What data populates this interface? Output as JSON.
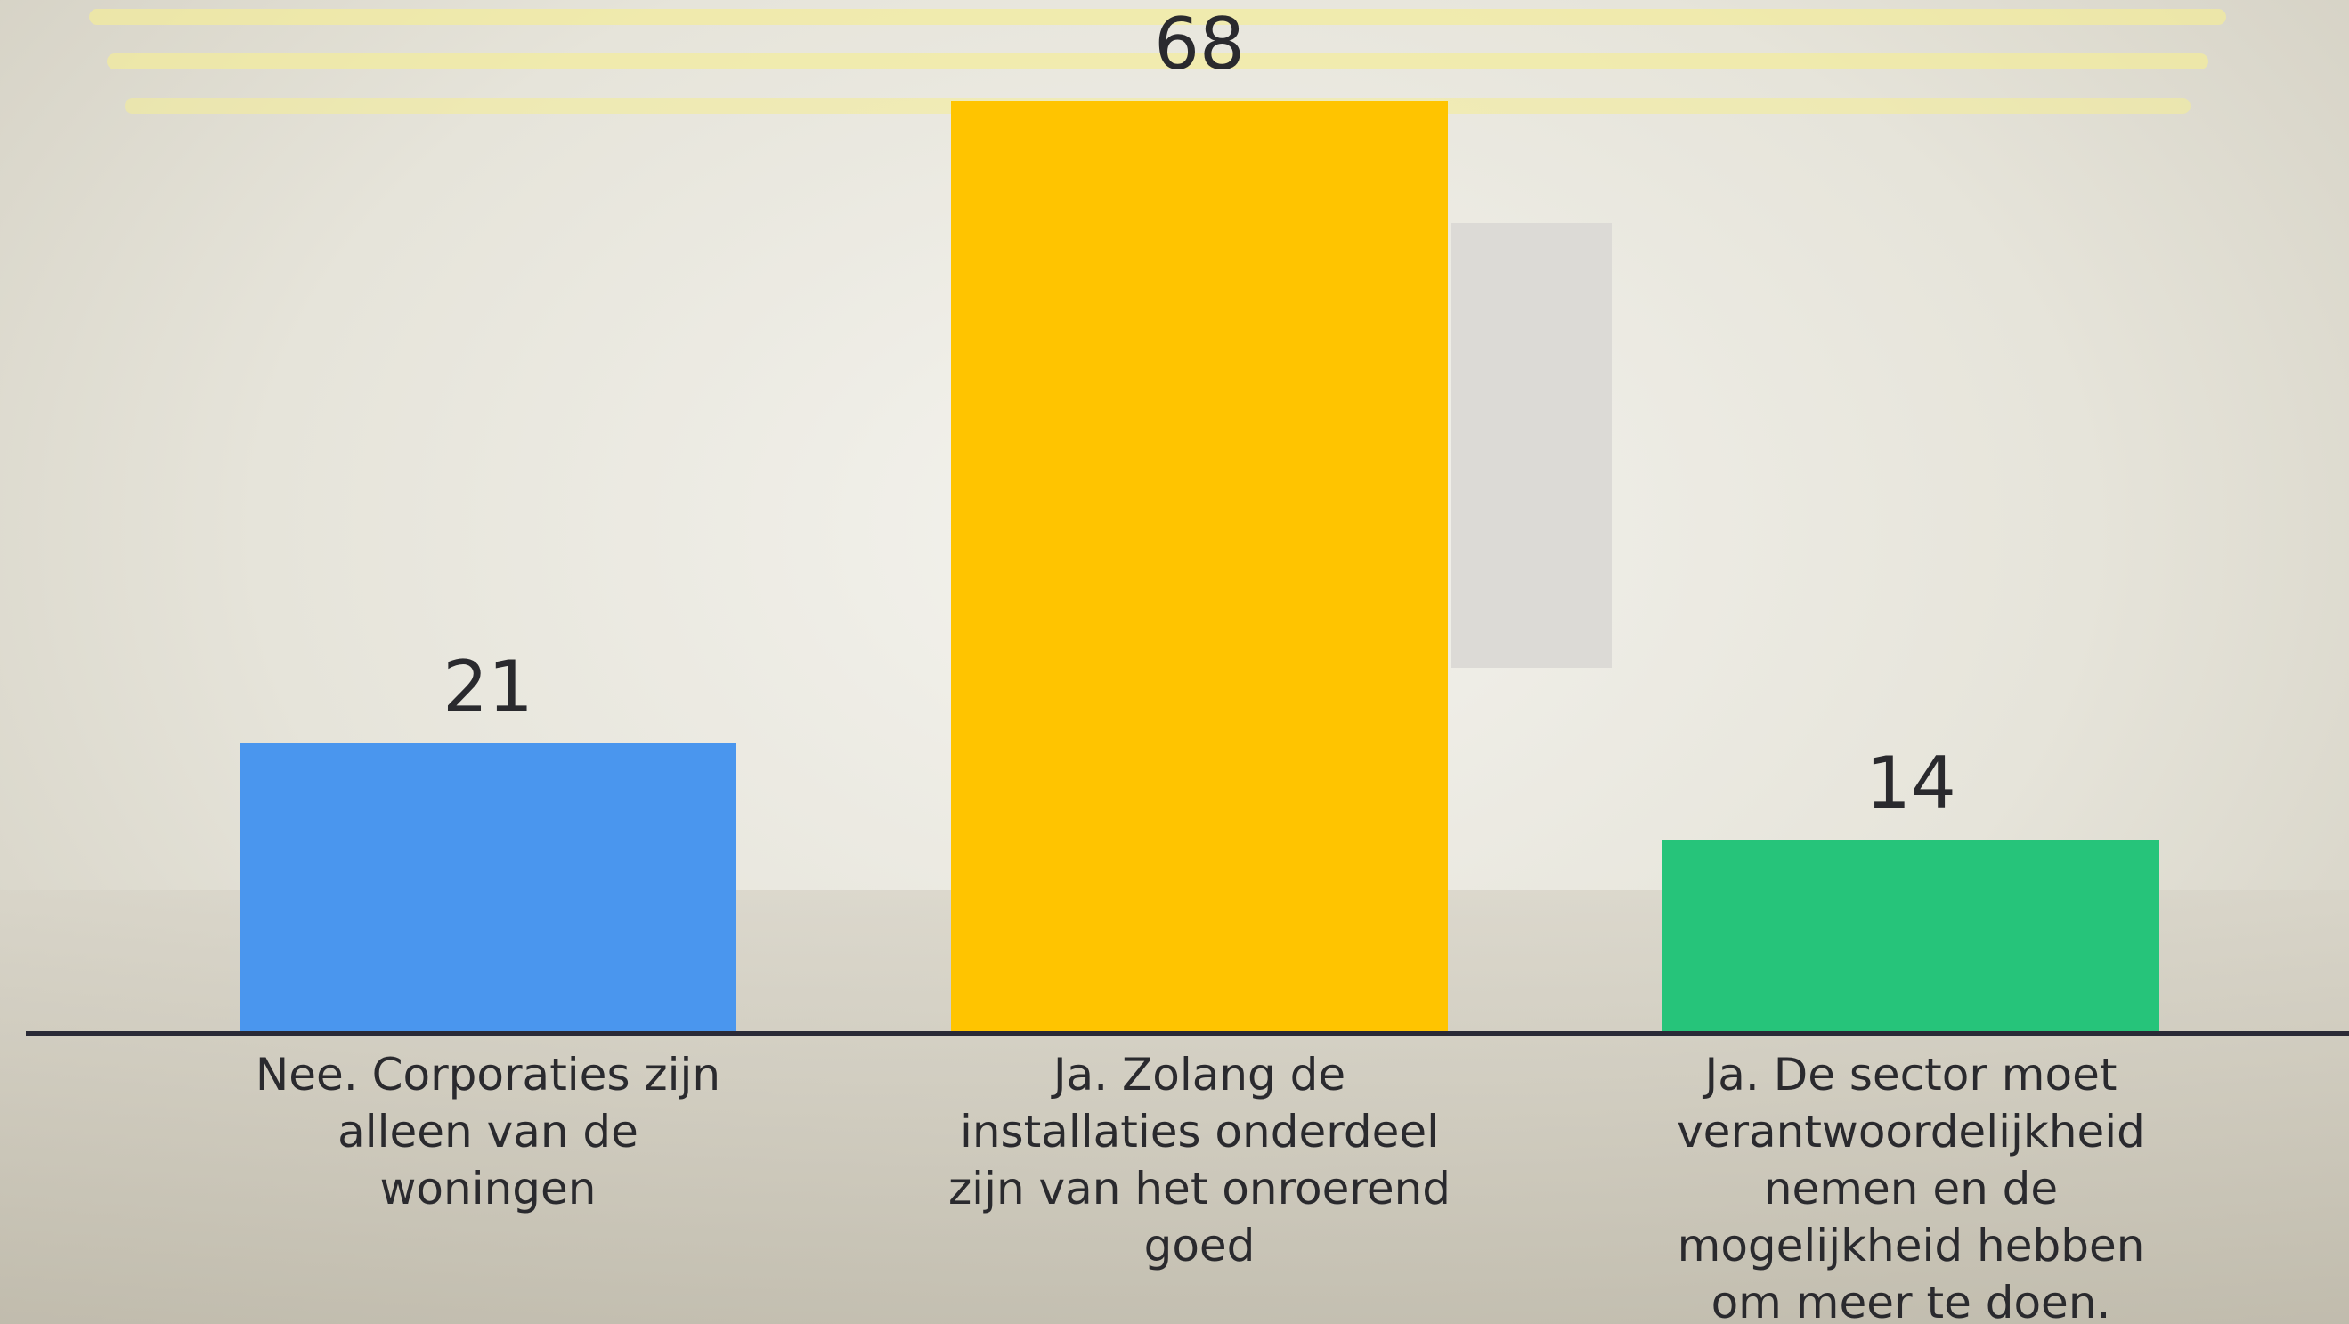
{
  "chart_data": {
    "type": "bar",
    "categories": [
      "Nee. Corporaties zijn alleen van de woningen",
      "Ja. Zolang de installaties onderdeel zijn van het onroerend goed",
      "Ja. De sector moet verantwoordelijkheid nemen en de mogelijkheid hebben om meer te doen."
    ],
    "values": [
      21,
      68,
      14
    ],
    "colors": [
      "#4a96ee",
      "#ffc400",
      "#26c47a"
    ]
  }
}
